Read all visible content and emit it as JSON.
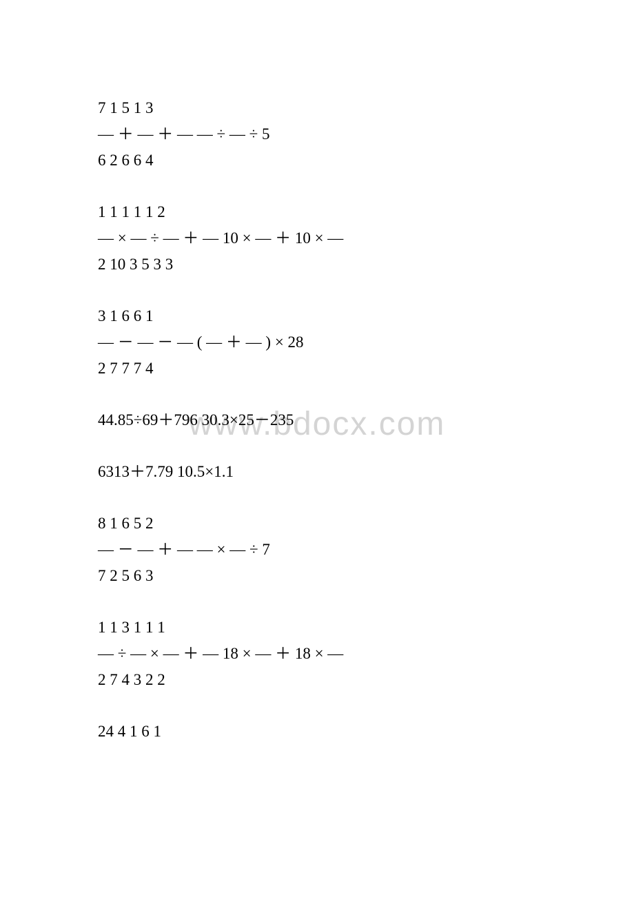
{
  "document": {
    "watermark": "www.bdocx.com",
    "background_color": "#ffffff",
    "text_color": "#000000",
    "watermark_color": "#d4d4d4",
    "font_size": 23,
    "watermark_font_size": 48,
    "blocks": [
      {
        "type": "fraction_block",
        "lines": [
          "7  1  5          1  3",
          "— ＋ — ＋ —        — ÷ — ÷ 5",
          "6  2  6          6  4"
        ]
      },
      {
        "type": "fraction_block",
        "lines": [
          "1  1   1  1         1     2",
          "— × — ÷ — ＋ —     10 × — ＋ 10 × —",
          "2  10  3  5         3     3"
        ]
      },
      {
        "type": "fraction_block",
        "lines": [
          "3  1  6          6  1",
          "— － — － —       ( — ＋ — ) × 28",
          "2  7  7          7  4"
        ]
      },
      {
        "type": "single_line",
        "text": "44.85÷69＋796           30.3×25－235"
      },
      {
        "type": "single_line",
        "text": "6313＋7.79          10.5×1.1"
      },
      {
        "type": "fraction_block",
        "lines": [
          "8  1  6          5  2",
          "— － — ＋ —        — × — ÷ 7",
          "7  2  5          6  3"
        ]
      },
      {
        "type": "fraction_block",
        "lines": [
          "1  1  3  1         1     1",
          "— ÷ — × — ＋ —     18 × — ＋ 18 × —",
          "2  7  4  3         2     2"
        ]
      },
      {
        "type": "last_line",
        "text": "24  4  1          6  1"
      }
    ]
  }
}
